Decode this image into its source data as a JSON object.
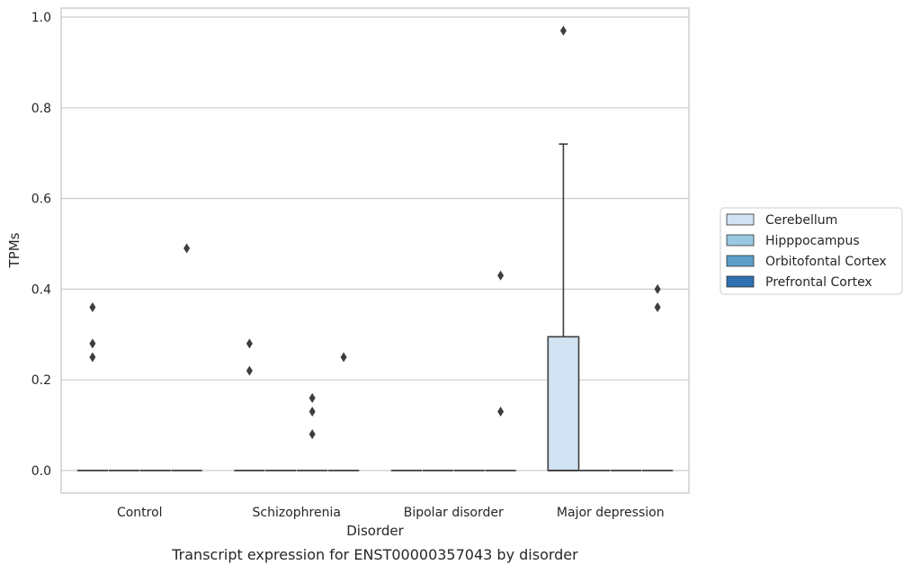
{
  "chart_data": {
    "type": "box",
    "caption": "Transcript expression for ENST00000357043 by disorder",
    "xlabel": "Disorder",
    "ylabel": "TPMs",
    "categories": [
      "Control",
      "Schizophrenia",
      "Bipolar disorder",
      "Major depression"
    ],
    "ylim": [
      -0.045,
      1.02
    ],
    "yticks": [
      0.0,
      0.2,
      0.4,
      0.6,
      0.8,
      1.0
    ],
    "ytick_labels": [
      "0.0",
      "0.2",
      "0.4",
      "0.6",
      "0.8",
      "1.0"
    ],
    "grid": "horizontal",
    "legend_position": "right",
    "series": [
      {
        "name": "Cerebellum",
        "color": "#d1e2f2",
        "boxes": [
          {
            "q1": 0,
            "median": 0,
            "q3": 0,
            "whisker_low": 0,
            "whisker_high": 0,
            "outliers": [
              0.25,
              0.28,
              0.36
            ]
          },
          {
            "q1": 0,
            "median": 0,
            "q3": 0,
            "whisker_low": 0,
            "whisker_high": 0,
            "outliers": [
              0.22,
              0.28
            ]
          },
          {
            "q1": 0,
            "median": 0,
            "q3": 0,
            "whisker_low": 0,
            "whisker_high": 0,
            "outliers": []
          },
          {
            "q1": 0,
            "median": 0,
            "q3": 0.295,
            "whisker_low": 0,
            "whisker_high": 0.72,
            "outliers": [
              0.97
            ]
          }
        ]
      },
      {
        "name": "Hipppocampus",
        "color": "#9ac8e0",
        "boxes": [
          {
            "q1": 0,
            "median": 0,
            "q3": 0,
            "whisker_low": 0,
            "whisker_high": 0,
            "outliers": []
          },
          {
            "q1": 0,
            "median": 0,
            "q3": 0,
            "whisker_low": 0,
            "whisker_high": 0,
            "outliers": []
          },
          {
            "q1": 0,
            "median": 0,
            "q3": 0,
            "whisker_low": 0,
            "whisker_high": 0,
            "outliers": []
          },
          {
            "q1": 0,
            "median": 0,
            "q3": 0,
            "whisker_low": 0,
            "whisker_high": 0,
            "outliers": []
          }
        ]
      },
      {
        "name": "Orbitofontal Cortex",
        "color": "#5b9fc9",
        "boxes": [
          {
            "q1": 0,
            "median": 0,
            "q3": 0,
            "whisker_low": 0,
            "whisker_high": 0,
            "outliers": []
          },
          {
            "q1": 0,
            "median": 0,
            "q3": 0,
            "whisker_low": 0,
            "whisker_high": 0,
            "outliers": [
              0.08,
              0.13,
              0.16
            ]
          },
          {
            "q1": 0,
            "median": 0,
            "q3": 0,
            "whisker_low": 0,
            "whisker_high": 0,
            "outliers": []
          },
          {
            "q1": 0,
            "median": 0,
            "q3": 0,
            "whisker_low": 0,
            "whisker_high": 0,
            "outliers": []
          }
        ]
      },
      {
        "name": "Prefrontal Cortex",
        "color": "#2d6faf",
        "boxes": [
          {
            "q1": 0,
            "median": 0,
            "q3": 0,
            "whisker_low": 0,
            "whisker_high": 0,
            "outliers": [
              0.49
            ]
          },
          {
            "q1": 0,
            "median": 0,
            "q3": 0,
            "whisker_low": 0,
            "whisker_high": 0,
            "outliers": [
              0.25
            ]
          },
          {
            "q1": 0,
            "median": 0,
            "q3": 0,
            "whisker_low": 0,
            "whisker_high": 0,
            "outliers": [
              0.13,
              0.43
            ]
          },
          {
            "q1": 0,
            "median": 0,
            "q3": 0,
            "whisker_low": 0,
            "whisker_high": 0,
            "outliers": [
              0.36,
              0.4
            ]
          }
        ]
      }
    ]
  }
}
